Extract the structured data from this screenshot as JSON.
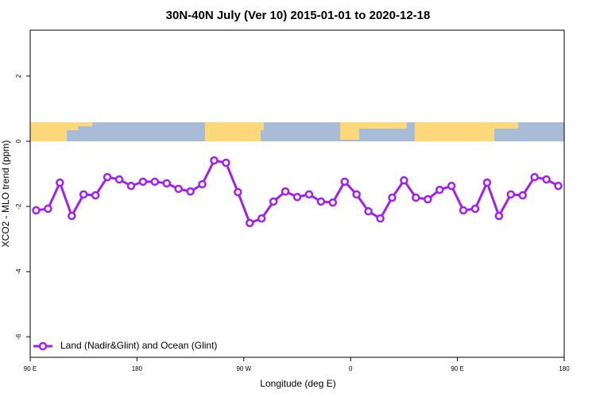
{
  "chart_data": {
    "type": "line",
    "title": "30N-40N July (Ver 10)   2015-01-01 to 2020-12-18",
    "x_label": "Longitude (deg E)",
    "y_label": "XCO2 - MLO trend (ppm)",
    "xlim": [
      90,
      540
    ],
    "xticks": [
      {
        "value": 90,
        "label": "90 E"
      },
      180,
      {
        "value": 270,
        "label": "90 W"
      },
      {
        "value": 360,
        "label": "0"
      },
      {
        "value": 450,
        "label": "90 E"
      },
      {
        "value": 540,
        "label": "180"
      }
    ],
    "ylim": [
      -6.63,
      3.41
    ],
    "yticks": [
      -6,
      -4,
      -2,
      0,
      2
    ],
    "legend_position": "bottom-left",
    "x": [
      95,
      105,
      115,
      125,
      135,
      145,
      155,
      165,
      175,
      185,
      195,
      205,
      215,
      225,
      235,
      245,
      255,
      265,
      275,
      285,
      295,
      305,
      315,
      325,
      335,
      345,
      355,
      365,
      375,
      385,
      395,
      405,
      415,
      425,
      435,
      445,
      455,
      465,
      475,
      485,
      495,
      505,
      515,
      525,
      535
    ],
    "series": [
      {
        "name": "Land (Nadir&Glint) and Ocean (Glint)",
        "color": "#a020f0",
        "values": [
          -2.12,
          -2.07,
          -1.27,
          -2.29,
          -1.63,
          -1.66,
          -1.1,
          -1.17,
          -1.37,
          -1.24,
          -1.24,
          -1.29,
          -1.46,
          -1.54,
          -1.32,
          -0.59,
          -0.66,
          -1.56,
          -2.51,
          -2.37,
          -1.85,
          -1.54,
          -1.71,
          -1.63,
          -1.85,
          -1.88,
          -1.24,
          -1.63,
          -2.15,
          -2.37,
          -1.73,
          -1.2,
          -1.73,
          -1.78,
          -1.49,
          -1.37,
          -2.12,
          -2.07,
          -1.27,
          -2.29,
          -1.63,
          -1.66,
          -1.1,
          -1.17,
          -1.37
        ]
      }
    ]
  }
}
